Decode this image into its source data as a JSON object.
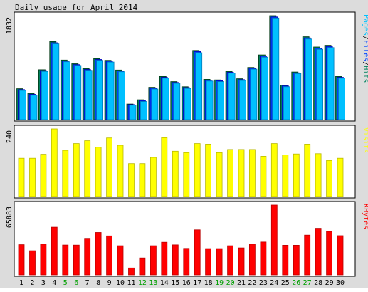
{
  "colors": {
    "background": "#dcdcdc",
    "panel": "#ffffff",
    "border": "#000000",
    "hits": "#00805c",
    "files": "#0040ff",
    "pages": "#00c0ff",
    "visits": "#ffff00",
    "kbytes": "#ff0000",
    "weekend": "#00a000",
    "weekday": "#000000"
  },
  "chart_data": {
    "type": "bar",
    "title": "Daily usage for April 2014",
    "categories": [
      "1",
      "2",
      "3",
      "4",
      "5",
      "6",
      "7",
      "8",
      "9",
      "10",
      "11",
      "12",
      "13",
      "14",
      "15",
      "16",
      "17",
      "18",
      "19",
      "20",
      "21",
      "22",
      "23",
      "24",
      "25",
      "26",
      "27",
      "28",
      "29",
      "30"
    ],
    "weekend_categories": [
      "5",
      "6",
      "12",
      "13",
      "19",
      "20",
      "26",
      "27"
    ],
    "panels": [
      {
        "id": "usage",
        "ymax_label": "1832",
        "ylim": [
          0,
          1832
        ],
        "legend": [
          "Pages",
          "Files",
          "Hits"
        ],
        "legend_separator": "/",
        "series": [
          {
            "name": "Hits",
            "values": [
              545,
              460,
              880,
              1375,
              1050,
              985,
              900,
              1075,
              1045,
              875,
              275,
              350,
              570,
              760,
              670,
              580,
              1220,
              710,
              700,
              850,
              720,
              920,
              1140,
              1832,
              610,
              840,
              1460,
              1280,
              1310,
              760
            ]
          },
          {
            "name": "Files",
            "values": [
              530,
              445,
              865,
              1355,
              1035,
              970,
              885,
              1060,
              1030,
              860,
              265,
              335,
              555,
              745,
              655,
              565,
              1200,
              695,
              685,
              835,
              705,
              905,
              1120,
              1810,
              595,
              825,
              1440,
              1260,
              1290,
              745
            ]
          },
          {
            "name": "Pages",
            "values": [
              515,
              430,
              850,
              1335,
              1020,
              955,
              870,
              1045,
              1015,
              845,
              255,
              320,
              540,
              730,
              640,
              550,
              1180,
              680,
              670,
              820,
              690,
              890,
              1100,
              1790,
              580,
              810,
              1420,
              1240,
              1270,
              730
            ]
          }
        ]
      },
      {
        "id": "visits",
        "ymax_label": "240",
        "ylim": [
          0,
          240
        ],
        "legend": [
          "Visits"
        ],
        "series": [
          {
            "name": "Visits",
            "values": [
              136,
              136,
              150,
              240,
              164,
              188,
              198,
              175,
              208,
              182,
              117,
              117,
              139,
              209,
              161,
              156,
              188,
              186,
              156,
              167,
              167,
              167,
              143,
              188,
              148,
              151,
              186,
              152,
              128,
              136
            ]
          }
        ]
      },
      {
        "id": "kbytes",
        "ymax_label": "65883",
        "ylim": [
          0,
          65883
        ],
        "legend": [
          "KBytes"
        ],
        "series": [
          {
            "name": "KBytes",
            "values": [
              28500,
              22800,
              29000,
              45000,
              28200,
              28100,
              34500,
              40000,
              36800,
              27500,
              6500,
              16000,
              27500,
              30800,
              28300,
              25000,
              42500,
              24800,
              24800,
              27500,
              25500,
              29000,
              31000,
              65883,
              28000,
              28000,
              37500,
              44000,
              41000,
              37000
            ]
          }
        ]
      }
    ]
  }
}
